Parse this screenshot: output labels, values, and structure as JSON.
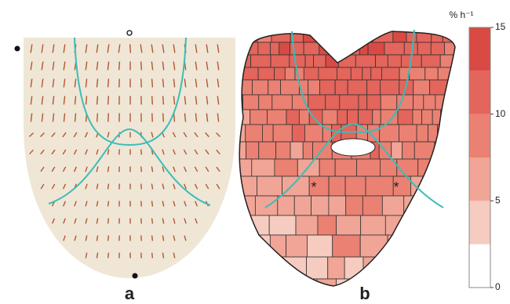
{
  "panel_a": {
    "label": "a"
  },
  "panel_b": {
    "label": "b",
    "markers": [
      "*",
      "*"
    ]
  },
  "colorbar": {
    "label": "% h⁻¹",
    "range": [
      0,
      15
    ],
    "ticks": [
      0,
      5,
      10,
      15
    ],
    "colors": [
      "#ffffff",
      "#f6cbc0",
      "#f1a596",
      "#ea8172",
      "#e3655b",
      "#d94a44"
    ]
  }
}
